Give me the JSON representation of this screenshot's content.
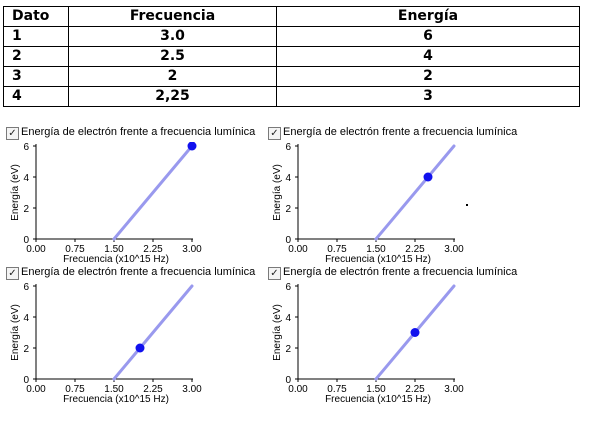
{
  "table": {
    "headers": [
      "Dato",
      "Frecuencia",
      "Energía"
    ],
    "rows": [
      [
        "1",
        "3.0",
        "6"
      ],
      [
        "2",
        "2.5",
        "4"
      ],
      [
        "3",
        "2",
        "2"
      ],
      [
        "4",
        "2,25",
        "3"
      ]
    ]
  },
  "chart_data": [
    {
      "type": "scatter",
      "title": "Energía de electrón frente a frecuencia lumínica",
      "checked": true,
      "xlabel": "Frecuencia (x10^15 Hz)",
      "ylabel": "Energía (eV)",
      "xlim": [
        0,
        3
      ],
      "ylim": [
        0,
        6
      ],
      "x_ticks": [
        "0.00",
        "0.75",
        "1.50",
        "2.25",
        "3.00"
      ],
      "y_ticks": [
        "0",
        "2",
        "4",
        "6"
      ],
      "line": {
        "x": [
          1.5,
          3.0
        ],
        "y": [
          0,
          6
        ],
        "color": "#9999ee"
      },
      "point": {
        "x": 3.0,
        "y": 6,
        "color": "#1111ee"
      }
    },
    {
      "type": "scatter",
      "title": "Energía de electrón frente a frecuencia lumínica",
      "checked": true,
      "xlabel": "Frecuencia (x10^15 Hz)",
      "ylabel": "Energía (eV)",
      "xlim": [
        0,
        3
      ],
      "ylim": [
        0,
        6
      ],
      "x_ticks": [
        "0.00",
        "0.75",
        "1.50",
        "2.25",
        "3.00"
      ],
      "y_ticks": [
        "0",
        "2",
        "4",
        "6"
      ],
      "line": {
        "x": [
          1.5,
          3.0
        ],
        "y": [
          0,
          6
        ],
        "color": "#9999ee"
      },
      "point": {
        "x": 2.5,
        "y": 4,
        "color": "#1111ee"
      }
    },
    {
      "type": "scatter",
      "title": "Energía de electrón frente a frecuencia lumínica",
      "checked": true,
      "xlabel": "Frecuencia (x10^15 Hz)",
      "ylabel": "Energía (eV)",
      "xlim": [
        0,
        3
      ],
      "ylim": [
        0,
        6
      ],
      "x_ticks": [
        "0.00",
        "0.75",
        "1.50",
        "2.25",
        "3.00"
      ],
      "y_ticks": [
        "0",
        "2",
        "4",
        "6"
      ],
      "line": {
        "x": [
          1.5,
          3.0
        ],
        "y": [
          0,
          6
        ],
        "color": "#9999ee"
      },
      "point": {
        "x": 2.0,
        "y": 2,
        "color": "#1111ee"
      }
    },
    {
      "type": "scatter",
      "title": "Energía de electrón frente a frecuencia lumínica",
      "checked": true,
      "xlabel": "Frecuencia (x10^15 Hz)",
      "ylabel": "Energía (eV)",
      "xlim": [
        0,
        3
      ],
      "ylim": [
        0,
        6
      ],
      "x_ticks": [
        "0.00",
        "0.75",
        "1.50",
        "2.25",
        "3.00"
      ],
      "y_ticks": [
        "0",
        "2",
        "4",
        "6"
      ],
      "line": {
        "x": [
          1.5,
          3.0
        ],
        "y": [
          0,
          6
        ],
        "color": "#9999ee"
      },
      "point": {
        "x": 2.25,
        "y": 3,
        "color": "#1111ee"
      }
    }
  ]
}
